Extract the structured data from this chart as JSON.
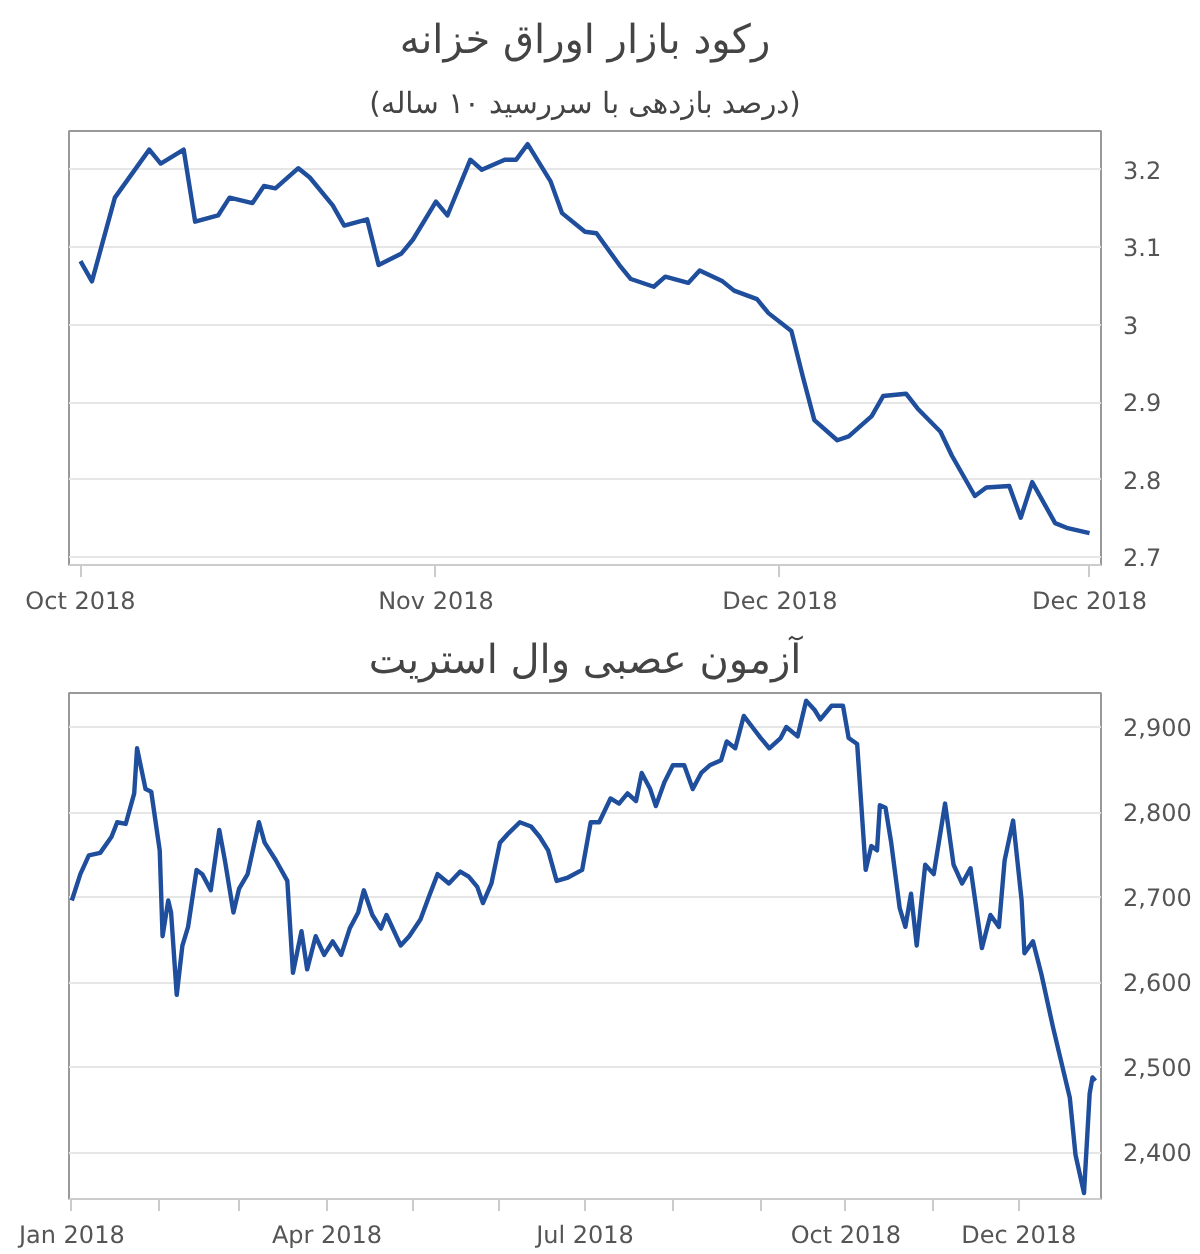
{
  "chart_data": [
    {
      "type": "line",
      "title": "رکود بازار اوراق خزانه",
      "subtitle": "(درصد بازدهی با سررسید ۱۰ ساله)",
      "x": [
        "2018-10-01",
        "2018-10-02",
        "2018-10-04",
        "2018-10-07",
        "2018-10-08",
        "2018-10-10",
        "2018-10-11",
        "2018-10-13",
        "2018-10-14",
        "2018-10-16",
        "2018-10-17",
        "2018-10-18",
        "2018-10-20",
        "2018-10-21",
        "2018-10-23",
        "2018-10-24",
        "2018-10-26",
        "2018-10-27",
        "2018-10-29",
        "2018-10-30",
        "2018-11-01",
        "2018-11-02",
        "2018-11-04",
        "2018-11-05",
        "2018-11-07",
        "2018-11-08",
        "2018-11-09",
        "2018-11-11",
        "2018-11-12",
        "2018-11-14",
        "2018-11-15",
        "2018-11-17",
        "2018-11-18",
        "2018-11-20",
        "2018-11-21",
        "2018-11-23",
        "2018-11-24",
        "2018-11-26",
        "2018-11-27",
        "2018-11-29",
        "2018-11-30",
        "2018-12-02",
        "2018-12-03",
        "2018-12-04",
        "2018-12-06",
        "2018-12-07",
        "2018-12-09",
        "2018-12-10",
        "2018-12-12",
        "2018-12-13",
        "2018-12-15",
        "2018-12-16",
        "2018-12-18",
        "2018-12-19",
        "2018-12-21",
        "2018-12-22",
        "2018-12-23",
        "2018-12-25",
        "2018-12-26",
        "2018-12-28"
      ],
      "series": [
        {
          "color": "#1f4e9c",
          "values": [
            3.082,
            3.056,
            3.164,
            3.226,
            3.208,
            3.226,
            3.133,
            3.141,
            3.164,
            3.157,
            3.179,
            3.176,
            3.202,
            3.19,
            3.154,
            3.128,
            3.136,
            3.077,
            3.092,
            3.11,
            3.159,
            3.141,
            3.213,
            3.2,
            3.213,
            3.213,
            3.233,
            3.185,
            3.144,
            3.12,
            3.118,
            3.077,
            3.059,
            3.049,
            3.062,
            3.054,
            3.07,
            3.056,
            3.044,
            3.033,
            3.015,
            2.992,
            2.933,
            2.877,
            2.851,
            2.856,
            2.882,
            2.908,
            2.911,
            2.892,
            2.862,
            2.831,
            2.779,
            2.79,
            2.792,
            2.751,
            2.797,
            2.744,
            2.738,
            2.731
          ]
        }
      ],
      "xlim": [
        "2018-09-30",
        "2018-12-29"
      ],
      "xticks": [
        {
          "value": "2018-10-01",
          "label": "Oct 2018"
        },
        {
          "value": "2018-11-01",
          "label": "Nov 2018"
        },
        {
          "value": "2018-12-01",
          "label": "Dec 2018"
        },
        {
          "value": "2018-12-28",
          "label": "Dec 2018"
        }
      ],
      "ylim": [
        2.69,
        3.25
      ],
      "yticks": [
        2.7,
        2.8,
        2.9,
        3,
        3.1,
        3.2
      ],
      "grid": "y",
      "line_style": "solid"
    },
    {
      "type": "line",
      "title": "آزمون عصبی وال استریت",
      "x": [
        "2018-01-01",
        "2018-01-04",
        "2018-01-07",
        "2018-01-11",
        "2018-01-15",
        "2018-01-17",
        "2018-01-20",
        "2018-01-23",
        "2018-01-24",
        "2018-01-27",
        "2018-01-29",
        "2018-02-01",
        "2018-02-02",
        "2018-02-04",
        "2018-02-05",
        "2018-02-07",
        "2018-02-09",
        "2018-02-11",
        "2018-02-14",
        "2018-02-16",
        "2018-02-19",
        "2018-02-22",
        "2018-02-24",
        "2018-02-27",
        "2018-03-01",
        "2018-03-04",
        "2018-03-08",
        "2018-03-10",
        "2018-03-14",
        "2018-03-18",
        "2018-03-20",
        "2018-03-23",
        "2018-03-25",
        "2018-03-28",
        "2018-03-31",
        "2018-04-03",
        "2018-04-06",
        "2018-04-09",
        "2018-04-12",
        "2018-04-14",
        "2018-04-17",
        "2018-04-20",
        "2018-04-22",
        "2018-04-27",
        "2018-04-30",
        "2018-05-04",
        "2018-05-07",
        "2018-05-10",
        "2018-05-14",
        "2018-05-18",
        "2018-05-21",
        "2018-05-24",
        "2018-05-26",
        "2018-05-29",
        "2018-06-01",
        "2018-06-04",
        "2018-06-08",
        "2018-06-12",
        "2018-06-15",
        "2018-06-18",
        "2018-06-21",
        "2018-06-25",
        "2018-06-30",
        "2018-07-03",
        "2018-07-06",
        "2018-07-10",
        "2018-07-13",
        "2018-07-16",
        "2018-07-19",
        "2018-07-21",
        "2018-07-24",
        "2018-07-26",
        "2018-07-29",
        "2018-08-01",
        "2018-08-05",
        "2018-08-08",
        "2018-08-11",
        "2018-08-14",
        "2018-08-18",
        "2018-08-20",
        "2018-08-23",
        "2018-08-26",
        "2018-08-29",
        "2018-09-01",
        "2018-09-04",
        "2018-09-08",
        "2018-09-10",
        "2018-09-14",
        "2018-09-17",
        "2018-09-20",
        "2018-09-22",
        "2018-09-26",
        "2018-09-30",
        "2018-10-02",
        "2018-10-05",
        "2018-10-08",
        "2018-10-10",
        "2018-10-12",
        "2018-10-13",
        "2018-10-15",
        "2018-10-17",
        "2018-10-20",
        "2018-10-22",
        "2018-10-24",
        "2018-10-26",
        "2018-10-29",
        "2018-11-01",
        "2018-11-05",
        "2018-11-08",
        "2018-11-11",
        "2018-11-14",
        "2018-11-18",
        "2018-11-21",
        "2018-11-24",
        "2018-11-26",
        "2018-11-29",
        "2018-12-02",
        "2018-12-03",
        "2018-12-06",
        "2018-12-09",
        "2018-12-13",
        "2018-12-19",
        "2018-12-21",
        "2018-12-24",
        "2018-12-26",
        "2018-12-27",
        "2018-12-28"
      ],
      "series": [
        {
          "color": "#1f4e9c",
          "values": [
            2696,
            2727,
            2749,
            2752,
            2771,
            2788,
            2786,
            2822,
            2875,
            2827,
            2824,
            2755,
            2654,
            2696,
            2682,
            2585,
            2643,
            2665,
            2732,
            2727,
            2708,
            2779,
            2743,
            2682,
            2710,
            2727,
            2788,
            2764,
            2743,
            2719,
            2611,
            2660,
            2615,
            2654,
            2632,
            2648,
            2632,
            2663,
            2682,
            2708,
            2679,
            2663,
            2679,
            2643,
            2654,
            2674,
            2701,
            2727,
            2716,
            2730,
            2724,
            2712,
            2693,
            2716,
            2764,
            2775,
            2788,
            2783,
            2771,
            2755,
            2719,
            2723,
            2732,
            2788,
            2788,
            2816,
            2810,
            2822,
            2813,
            2846,
            2827,
            2807,
            2835,
            2855,
            2855,
            2827,
            2846,
            2855,
            2861,
            2883,
            2875,
            2913,
            2900,
            2887,
            2875,
            2887,
            2900,
            2889,
            2931,
            2920,
            2909,
            2925,
            2925,
            2887,
            2880,
            2732,
            2760,
            2755,
            2808,
            2805,
            2764,
            2687,
            2665,
            2704,
            2643,
            2738,
            2727,
            2810,
            2738,
            2716,
            2734,
            2640,
            2679,
            2665,
            2743,
            2790,
            2696,
            2634,
            2648,
            2609,
            2548,
            2464,
            2397,
            2352,
            2469,
            2488,
            2484
          ]
        }
      ],
      "xlim": [
        "2017-12-31",
        "2018-12-30"
      ],
      "xticks": [
        {
          "value": "2018-01-01",
          "label": "Jan 2018"
        },
        {
          "value": "2018-02-01",
          "label": null
        },
        {
          "value": "2018-03-01",
          "label": null
        },
        {
          "value": "2018-04-01",
          "label": "Apr 2018"
        },
        {
          "value": "2018-05-01",
          "label": null
        },
        {
          "value": "2018-06-01",
          "label": null
        },
        {
          "value": "2018-07-01",
          "label": "Jul 2018"
        },
        {
          "value": "2018-08-01",
          "label": null
        },
        {
          "value": "2018-09-01",
          "label": null
        },
        {
          "value": "2018-10-01",
          "label": "Oct 2018"
        },
        {
          "value": "2018-11-01",
          "label": null
        },
        {
          "value": "2018-12-01",
          "label": "Dec 2018"
        }
      ],
      "ylim": [
        2345,
        2940
      ],
      "yticks": [
        {
          "value": 2400,
          "label": "2,400"
        },
        {
          "value": 2500,
          "label": "2,500"
        },
        {
          "value": 2600,
          "label": "2,600"
        },
        {
          "value": 2700,
          "label": "2,700"
        },
        {
          "value": 2800,
          "label": "2,800"
        },
        {
          "value": 2900,
          "label": "2,900"
        }
      ],
      "grid": "y",
      "line_style": "solid"
    }
  ]
}
